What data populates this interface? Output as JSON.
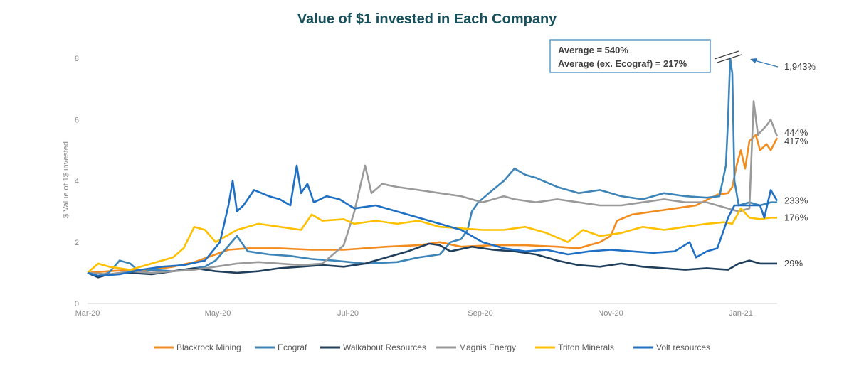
{
  "chart_data": {
    "type": "line",
    "title": "Value of $1 invested in Each Company",
    "ylabel": "$ Value of 1$ invested",
    "xlabel": "",
    "ylim": [
      0,
      8
    ],
    "yticks": [
      "0",
      "2",
      "4",
      "6",
      "8"
    ],
    "xlim": [
      0,
      323
    ],
    "xticks": [
      {
        "label": "Mar-20",
        "x": 0
      },
      {
        "label": "May-20",
        "x": 61
      },
      {
        "label": "Jul-20",
        "x": 122
      },
      {
        "label": "Sep-20",
        "x": 184
      },
      {
        "label": "Nov-20",
        "x": 245
      },
      {
        "label": "Jan-21",
        "x": 306
      }
    ],
    "annotation": {
      "line1": "Average = 540%",
      "line2": "Average (ex. Ecograf) = 217%"
    },
    "clipped_value_label": "1,943%",
    "series": [
      {
        "name": "Blackrock Mining",
        "color": "#f28c1e",
        "end_label": "417%",
        "points": [
          [
            0,
            1.0
          ],
          [
            10,
            1.05
          ],
          [
            20,
            1.1
          ],
          [
            30,
            1.1
          ],
          [
            40,
            1.2
          ],
          [
            50,
            1.35
          ],
          [
            60,
            1.6
          ],
          [
            66,
            1.75
          ],
          [
            75,
            1.8
          ],
          [
            90,
            1.8
          ],
          [
            105,
            1.75
          ],
          [
            120,
            1.75
          ],
          [
            140,
            1.85
          ],
          [
            155,
            1.9
          ],
          [
            165,
            2.0
          ],
          [
            175,
            1.85
          ],
          [
            190,
            1.9
          ],
          [
            205,
            1.9
          ],
          [
            220,
            1.85
          ],
          [
            230,
            1.8
          ],
          [
            240,
            2.0
          ],
          [
            245,
            2.2
          ],
          [
            248,
            2.7
          ],
          [
            255,
            2.9
          ],
          [
            265,
            3.0
          ],
          [
            275,
            3.1
          ],
          [
            285,
            3.2
          ],
          [
            295,
            3.55
          ],
          [
            300,
            3.6
          ],
          [
            302,
            3.8
          ],
          [
            304,
            4.5
          ],
          [
            306,
            5.0
          ],
          [
            308,
            4.4
          ],
          [
            310,
            5.3
          ],
          [
            313,
            5.5
          ],
          [
            315,
            5.0
          ],
          [
            318,
            5.2
          ],
          [
            320,
            5.0
          ],
          [
            323,
            5.4
          ]
        ]
      },
      {
        "name": "Ecograf",
        "color": "#3d85b8",
        "end_label": "",
        "points": [
          [
            0,
            1.0
          ],
          [
            5,
            0.9
          ],
          [
            10,
            1.0
          ],
          [
            15,
            1.4
          ],
          [
            20,
            1.3
          ],
          [
            25,
            1.0
          ],
          [
            30,
            1.1
          ],
          [
            40,
            1.05
          ],
          [
            50,
            1.15
          ],
          [
            55,
            1.2
          ],
          [
            60,
            1.4
          ],
          [
            65,
            1.8
          ],
          [
            70,
            2.2
          ],
          [
            75,
            1.7
          ],
          [
            85,
            1.6
          ],
          [
            95,
            1.55
          ],
          [
            105,
            1.45
          ],
          [
            115,
            1.4
          ],
          [
            130,
            1.3
          ],
          [
            145,
            1.35
          ],
          [
            155,
            1.5
          ],
          [
            165,
            1.6
          ],
          [
            170,
            2.0
          ],
          [
            175,
            2.1
          ],
          [
            178,
            2.4
          ],
          [
            180,
            3.0
          ],
          [
            183,
            3.3
          ],
          [
            188,
            3.6
          ],
          [
            195,
            4.0
          ],
          [
            200,
            4.4
          ],
          [
            205,
            4.2
          ],
          [
            210,
            4.1
          ],
          [
            220,
            3.8
          ],
          [
            230,
            3.6
          ],
          [
            240,
            3.7
          ],
          [
            250,
            3.5
          ],
          [
            260,
            3.4
          ],
          [
            270,
            3.6
          ],
          [
            280,
            3.5
          ],
          [
            290,
            3.45
          ],
          [
            296,
            3.5
          ],
          [
            299,
            4.5
          ],
          [
            300,
            6.0
          ],
          [
            301,
            8.0
          ],
          [
            302,
            7.5
          ],
          [
            303,
            4.0
          ],
          [
            305,
            3.2
          ],
          [
            310,
            3.3
          ],
          [
            315,
            3.2
          ],
          [
            320,
            3.3
          ],
          [
            323,
            3.3
          ]
        ]
      },
      {
        "name": "Walkabout Resources",
        "color": "#1f3f5c",
        "end_label": "29%",
        "points": [
          [
            0,
            1.0
          ],
          [
            5,
            0.85
          ],
          [
            10,
            0.95
          ],
          [
            20,
            1.0
          ],
          [
            30,
            0.95
          ],
          [
            40,
            1.05
          ],
          [
            50,
            1.15
          ],
          [
            60,
            1.05
          ],
          [
            70,
            1.0
          ],
          [
            80,
            1.05
          ],
          [
            90,
            1.15
          ],
          [
            100,
            1.2
          ],
          [
            110,
            1.25
          ],
          [
            120,
            1.2
          ],
          [
            130,
            1.3
          ],
          [
            140,
            1.5
          ],
          [
            150,
            1.7
          ],
          [
            160,
            1.95
          ],
          [
            165,
            1.9
          ],
          [
            170,
            1.7
          ],
          [
            180,
            1.85
          ],
          [
            190,
            1.75
          ],
          [
            200,
            1.7
          ],
          [
            210,
            1.6
          ],
          [
            220,
            1.4
          ],
          [
            230,
            1.25
          ],
          [
            240,
            1.2
          ],
          [
            250,
            1.3
          ],
          [
            260,
            1.2
          ],
          [
            270,
            1.15
          ],
          [
            280,
            1.1
          ],
          [
            290,
            1.15
          ],
          [
            300,
            1.1
          ],
          [
            305,
            1.3
          ],
          [
            310,
            1.4
          ],
          [
            315,
            1.3
          ],
          [
            320,
            1.3
          ],
          [
            323,
            1.3
          ]
        ]
      },
      {
        "name": "Magnis Energy",
        "color": "#9a9a9a",
        "end_label": "444%",
        "points": [
          [
            0,
            1.0
          ],
          [
            10,
            0.95
          ],
          [
            20,
            1.05
          ],
          [
            30,
            1.0
          ],
          [
            40,
            1.05
          ],
          [
            50,
            1.1
          ],
          [
            60,
            1.2
          ],
          [
            70,
            1.3
          ],
          [
            80,
            1.35
          ],
          [
            90,
            1.3
          ],
          [
            100,
            1.25
          ],
          [
            110,
            1.3
          ],
          [
            120,
            1.9
          ],
          [
            125,
            3.0
          ],
          [
            130,
            4.5
          ],
          [
            133,
            3.6
          ],
          [
            138,
            3.9
          ],
          [
            145,
            3.8
          ],
          [
            155,
            3.7
          ],
          [
            165,
            3.6
          ],
          [
            175,
            3.5
          ],
          [
            185,
            3.3
          ],
          [
            195,
            3.5
          ],
          [
            200,
            3.4
          ],
          [
            210,
            3.3
          ],
          [
            220,
            3.4
          ],
          [
            230,
            3.3
          ],
          [
            240,
            3.2
          ],
          [
            250,
            3.2
          ],
          [
            260,
            3.3
          ],
          [
            270,
            3.4
          ],
          [
            280,
            3.3
          ],
          [
            290,
            3.3
          ],
          [
            300,
            3.1
          ],
          [
            305,
            3.0
          ],
          [
            310,
            3.1
          ],
          [
            312,
            6.6
          ],
          [
            314,
            5.5
          ],
          [
            318,
            5.8
          ],
          [
            320,
            6.0
          ],
          [
            323,
            5.45
          ]
        ]
      },
      {
        "name": "Triton Minerals",
        "color": "#ffc000",
        "end_label": "176%",
        "points": [
          [
            0,
            1.0
          ],
          [
            5,
            1.3
          ],
          [
            10,
            1.2
          ],
          [
            20,
            1.1
          ],
          [
            30,
            1.3
          ],
          [
            40,
            1.5
          ],
          [
            45,
            1.8
          ],
          [
            50,
            2.5
          ],
          [
            55,
            2.4
          ],
          [
            60,
            2.0
          ],
          [
            65,
            2.2
          ],
          [
            70,
            2.4
          ],
          [
            80,
            2.6
          ],
          [
            90,
            2.5
          ],
          [
            100,
            2.4
          ],
          [
            105,
            2.9
          ],
          [
            110,
            2.7
          ],
          [
            120,
            2.75
          ],
          [
            125,
            2.6
          ],
          [
            135,
            2.7
          ],
          [
            145,
            2.6
          ],
          [
            155,
            2.7
          ],
          [
            165,
            2.5
          ],
          [
            175,
            2.45
          ],
          [
            185,
            2.4
          ],
          [
            195,
            2.4
          ],
          [
            205,
            2.5
          ],
          [
            215,
            2.3
          ],
          [
            225,
            2.0
          ],
          [
            232,
            2.4
          ],
          [
            240,
            2.2
          ],
          [
            250,
            2.3
          ],
          [
            260,
            2.5
          ],
          [
            270,
            2.4
          ],
          [
            280,
            2.5
          ],
          [
            290,
            2.6
          ],
          [
            298,
            2.65
          ],
          [
            302,
            2.6
          ],
          [
            306,
            3.1
          ],
          [
            310,
            2.8
          ],
          [
            315,
            2.75
          ],
          [
            320,
            2.8
          ],
          [
            323,
            2.8
          ]
        ]
      },
      {
        "name": "Volt resources",
        "color": "#1f6fc4",
        "end_label": "233%",
        "points": [
          [
            0,
            1.0
          ],
          [
            5,
            0.9
          ],
          [
            15,
            0.95
          ],
          [
            25,
            1.1
          ],
          [
            35,
            1.2
          ],
          [
            45,
            1.25
          ],
          [
            55,
            1.4
          ],
          [
            62,
            2.0
          ],
          [
            66,
            3.2
          ],
          [
            68,
            4.0
          ],
          [
            70,
            3.0
          ],
          [
            73,
            3.2
          ],
          [
            78,
            3.7
          ],
          [
            85,
            3.5
          ],
          [
            90,
            3.4
          ],
          [
            95,
            3.2
          ],
          [
            98,
            4.5
          ],
          [
            100,
            3.6
          ],
          [
            103,
            3.9
          ],
          [
            106,
            3.3
          ],
          [
            112,
            3.5
          ],
          [
            118,
            3.4
          ],
          [
            125,
            3.1
          ],
          [
            135,
            3.2
          ],
          [
            145,
            3.0
          ],
          [
            155,
            2.8
          ],
          [
            165,
            2.6
          ],
          [
            175,
            2.4
          ],
          [
            185,
            2.0
          ],
          [
            195,
            1.8
          ],
          [
            205,
            1.7
          ],
          [
            215,
            1.75
          ],
          [
            225,
            1.6
          ],
          [
            235,
            1.7
          ],
          [
            245,
            1.75
          ],
          [
            255,
            1.7
          ],
          [
            265,
            1.65
          ],
          [
            275,
            1.7
          ],
          [
            282,
            2.0
          ],
          [
            285,
            1.5
          ],
          [
            290,
            1.7
          ],
          [
            295,
            1.8
          ],
          [
            300,
            2.8
          ],
          [
            303,
            3.2
          ],
          [
            310,
            3.2
          ],
          [
            315,
            3.2
          ],
          [
            317,
            2.8
          ],
          [
            320,
            3.7
          ],
          [
            323,
            3.35
          ]
        ]
      }
    ]
  }
}
